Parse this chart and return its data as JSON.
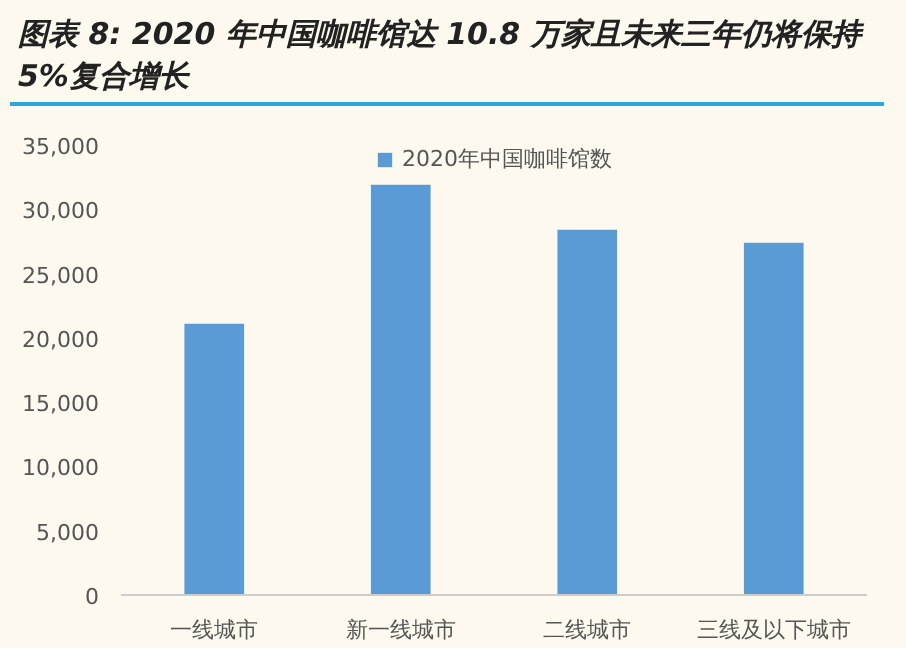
{
  "chart_data": {
    "type": "bar",
    "title": "图表 8: 2020 年中国咖啡馆达 10.8 万家且未来三年仍将保持 5%复合增长",
    "categories": [
      "一线城市",
      "新一线城市",
      "二线城市",
      "三线及以下城市"
    ],
    "series": [
      {
        "name": "2020年中国咖啡馆数",
        "color": "#5b9bd5",
        "values": [
          21100,
          31900,
          28400,
          27400
        ]
      }
    ],
    "ylim": [
      0,
      35000
    ],
    "yticks": [
      0,
      {
        "value": 5000,
        "label": "5,000"
      },
      {
        "value": 10000,
        "label": "10,000"
      },
      {
        "value": 15000,
        "label": "15,000"
      },
      {
        "value": 20000,
        "label": "20,000"
      },
      {
        "value": 25000,
        "label": "25,000"
      },
      {
        "value": 30000,
        "label": "30,000"
      },
      {
        "value": 35000,
        "label": "35,000"
      }
    ],
    "grid": false,
    "legend": "top"
  }
}
